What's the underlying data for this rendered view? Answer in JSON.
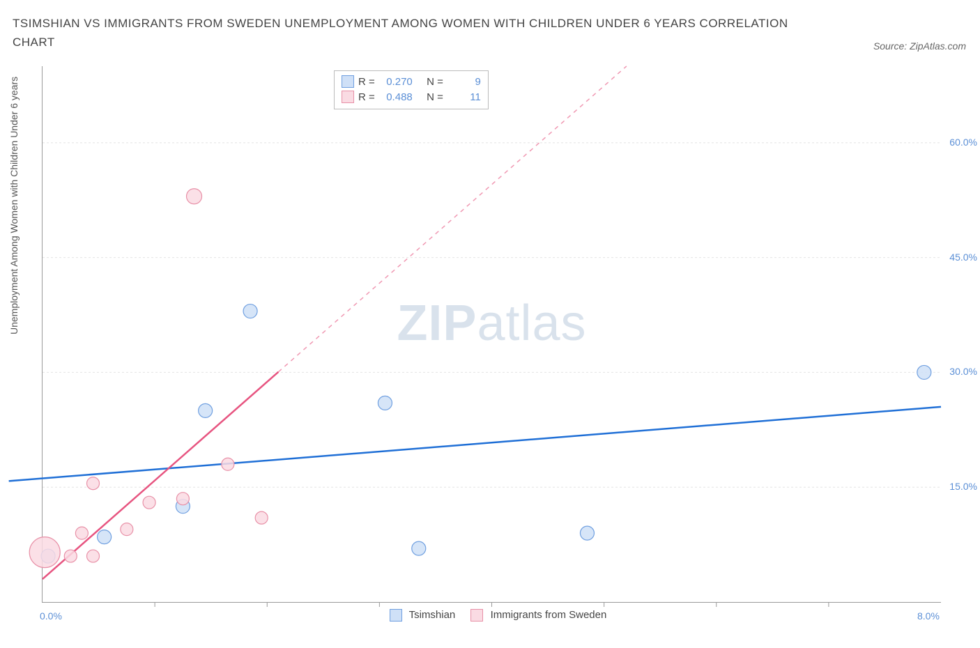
{
  "title": "TSIMSHIAN VS IMMIGRANTS FROM SWEDEN UNEMPLOYMENT AMONG WOMEN WITH CHILDREN UNDER 6 YEARS CORRELATION CHART",
  "source_label": "Source: ZipAtlas.com",
  "watermark_bold": "ZIP",
  "watermark_rest": "atlas",
  "yaxis_label": "Unemployment Among Women with Children Under 6 years",
  "chart": {
    "type": "scatter-correlation",
    "xlim": [
      0.0,
      8.0
    ],
    "ylim": [
      0.0,
      70.0
    ],
    "x_ticks": [
      0.0,
      8.0
    ],
    "x_tick_labels": [
      "0.0%",
      "8.0%"
    ],
    "x_minor_ticks": [
      1.0,
      2.0,
      3.0,
      4.0,
      5.0,
      6.0,
      7.0
    ],
    "y_gridlines": [
      15.0,
      30.0,
      45.0,
      60.0
    ],
    "y_tick_labels": [
      "15.0%",
      "30.0%",
      "45.0%",
      "60.0%"
    ],
    "background_color": "#ffffff",
    "grid_color": "#e4e4e4",
    "grid_dash": "3,3",
    "axis_color": "#999999",
    "label_fontsize": 14,
    "tick_label_color": "#5b8fd6",
    "series": [
      {
        "name": "Tsimshian",
        "marker_fill": "#cfe0f7",
        "marker_stroke": "#6f9fe0",
        "line_color": "#1f6fd6",
        "line_width": 2.5,
        "line_dash_after": 8.0,
        "r_value": "0.270",
        "n_value": "9",
        "points": [
          {
            "x": 0.05,
            "y": 6.0,
            "r": 10
          },
          {
            "x": 0.55,
            "y": 8.5,
            "r": 10
          },
          {
            "x": 1.25,
            "y": 12.5,
            "r": 10
          },
          {
            "x": 1.45,
            "y": 25.0,
            "r": 10
          },
          {
            "x": 1.85,
            "y": 38.0,
            "r": 10
          },
          {
            "x": 3.05,
            "y": 26.0,
            "r": 10
          },
          {
            "x": 3.35,
            "y": 7.0,
            "r": 10
          },
          {
            "x": 4.85,
            "y": 9.0,
            "r": 10
          },
          {
            "x": 7.85,
            "y": 30.0,
            "r": 10
          }
        ],
        "trend": {
          "x1": -0.3,
          "y1": 15.8,
          "x2": 8.0,
          "y2": 25.5
        }
      },
      {
        "name": "Immigrants from Sweden",
        "marker_fill": "#fadbe3",
        "marker_stroke": "#e890a7",
        "line_color": "#e75480",
        "line_width": 2.5,
        "line_dash_after": 2.1,
        "dash_pattern": "6,6",
        "r_value": "0.488",
        "n_value": "11",
        "points": [
          {
            "x": 0.02,
            "y": 6.5,
            "r": 22
          },
          {
            "x": 0.25,
            "y": 6.0,
            "r": 9
          },
          {
            "x": 0.45,
            "y": 6.0,
            "r": 9
          },
          {
            "x": 0.35,
            "y": 9.0,
            "r": 9
          },
          {
            "x": 0.45,
            "y": 15.5,
            "r": 9
          },
          {
            "x": 0.75,
            "y": 9.5,
            "r": 9
          },
          {
            "x": 0.95,
            "y": 13.0,
            "r": 9
          },
          {
            "x": 1.25,
            "y": 13.5,
            "r": 9
          },
          {
            "x": 1.35,
            "y": 53.0,
            "r": 11
          },
          {
            "x": 1.65,
            "y": 18.0,
            "r": 9
          },
          {
            "x": 1.95,
            "y": 11.0,
            "r": 9
          }
        ],
        "trend": {
          "x1": 0.0,
          "y1": 3.0,
          "x2": 5.2,
          "y2": 70.0
        }
      }
    ],
    "stat_legend_labels": {
      "r": "R =",
      "n": "N ="
    },
    "bottom_legend": {
      "items": [
        {
          "label": "Tsimshian",
          "fill": "#cfe0f7",
          "stroke": "#6f9fe0"
        },
        {
          "label": "Immigrants from Sweden",
          "fill": "#fadbe3",
          "stroke": "#e890a7"
        }
      ]
    }
  }
}
